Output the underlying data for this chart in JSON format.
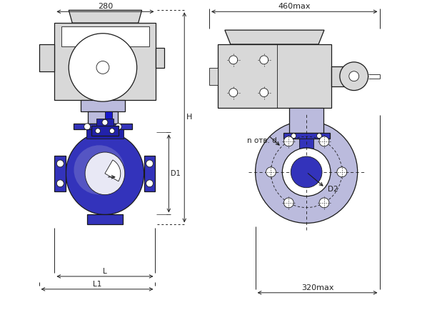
{
  "bg_color": "#ffffff",
  "line_color": "#1a1a1a",
  "blue_dark": "#1a1acc",
  "blue_mid": "#2222aa",
  "blue_body": "#3333bb",
  "blue_light": "#7777cc",
  "blue_fill": "#9999cc",
  "blue_pale": "#bbbbdd",
  "gray_fill": "#d8d8d8",
  "gray_dark": "#aaaaaa",
  "dim_color": "#222222",
  "dim_280": "280",
  "dim_460max": "460max",
  "dim_H": "H",
  "dim_D1": "D1",
  "dim_D2": "D2",
  "dim_L": "L",
  "dim_L1": "L1",
  "dim_n_otv_d": "n отв. d",
  "dim_320max": "320max"
}
